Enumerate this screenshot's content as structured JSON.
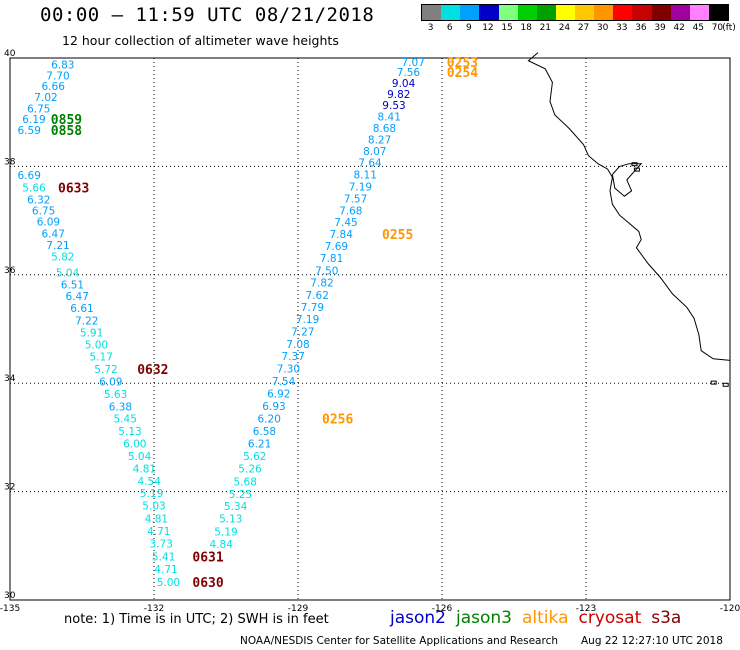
{
  "header": {
    "title": "00:00 – 11:59 UTC 08/21/2018",
    "subtitle": "12 hour collection of altimeter wave heights"
  },
  "legend": {
    "colors": [
      "#808080",
      "#00e0e0",
      "#00a0ff",
      "#0000c8",
      "#80ff80",
      "#00d000",
      "#00a000",
      "#ffff00",
      "#ffc800",
      "#ff9600",
      "#ff0000",
      "#c80000",
      "#800000",
      "#a000a0",
      "#ff80ff",
      "#000000"
    ],
    "labels": [
      "3",
      "6",
      "9",
      "12",
      "15",
      "18",
      "21",
      "24",
      "27",
      "30",
      "33",
      "36",
      "39",
      "42",
      "45",
      "70"
    ],
    "unit": "(ft)"
  },
  "axes": {
    "lon_ticks": [
      -135,
      -132,
      -129,
      -126,
      -123,
      -120
    ],
    "lat_ticks": [
      40,
      38,
      36,
      34,
      32,
      30
    ],
    "lon_labels": [
      "-135",
      "-132",
      "-129",
      "-126",
      "-123",
      "-120"
    ],
    "lat_labels": [
      "40",
      "38",
      "36",
      "34",
      "32",
      "30"
    ]
  },
  "satellites": [
    {
      "name": "jason2",
      "color": "#0000c8"
    },
    {
      "name": "jason3",
      "color": "#008000"
    },
    {
      "name": "altika",
      "color": "#ff9600"
    },
    {
      "name": "cryosat",
      "color": "#c80000"
    },
    {
      "name": "s3a",
      "color": "#800000"
    }
  ],
  "tracks": [
    {
      "name": "track-west",
      "points": [
        {
          "lon": -133.9,
          "lat": 39.88,
          "v": "6.83"
        },
        {
          "lon": -134.0,
          "lat": 39.68,
          "v": "7.70"
        },
        {
          "lon": -134.1,
          "lat": 39.48,
          "v": "6.66"
        },
        {
          "lon": -134.25,
          "lat": 39.28,
          "v": "7.02"
        },
        {
          "lon": -134.4,
          "lat": 39.07,
          "v": "6.75"
        },
        {
          "lon": -134.5,
          "lat": 38.87,
          "v": "6.19"
        },
        {
          "lon": -134.6,
          "lat": 38.67,
          "v": "6.59"
        },
        {
          "lon": -134.6,
          "lat": 37.84,
          "v": "6.69"
        },
        {
          "lon": -134.5,
          "lat": 37.61,
          "v": "5.66"
        },
        {
          "lon": -134.4,
          "lat": 37.39,
          "v": "6.32"
        },
        {
          "lon": -134.3,
          "lat": 37.19,
          "v": "6.75"
        },
        {
          "lon": -134.2,
          "lat": 36.98,
          "v": "6.09"
        },
        {
          "lon": -134.1,
          "lat": 36.76,
          "v": "6.47"
        },
        {
          "lon": -134.0,
          "lat": 36.55,
          "v": "7.21"
        },
        {
          "lon": -133.9,
          "lat": 36.34,
          "v": "5.82"
        },
        {
          "lon": -133.8,
          "lat": 36.04,
          "v": "5.04"
        },
        {
          "lon": -133.7,
          "lat": 35.82,
          "v": "6.51"
        },
        {
          "lon": -133.6,
          "lat": 35.61,
          "v": "6.47"
        },
        {
          "lon": -133.5,
          "lat": 35.39,
          "v": "6.61"
        },
        {
          "lon": -133.4,
          "lat": 35.16,
          "v": "7.22"
        },
        {
          "lon": -133.3,
          "lat": 34.94,
          "v": "5.91"
        },
        {
          "lon": -133.2,
          "lat": 34.71,
          "v": "5.00"
        },
        {
          "lon": -133.1,
          "lat": 34.49,
          "v": "5.17"
        },
        {
          "lon": -133.0,
          "lat": 34.26,
          "v": "5.72"
        },
        {
          "lon": -132.9,
          "lat": 34.03,
          "v": "6.09"
        },
        {
          "lon": -132.8,
          "lat": 33.8,
          "v": "5.63"
        },
        {
          "lon": -132.7,
          "lat": 33.57,
          "v": "6.38"
        },
        {
          "lon": -132.6,
          "lat": 33.35,
          "v": "5.45"
        },
        {
          "lon": -132.5,
          "lat": 33.12,
          "v": "5.13"
        },
        {
          "lon": -132.4,
          "lat": 32.89,
          "v": "6.00"
        },
        {
          "lon": -132.3,
          "lat": 32.66,
          "v": "5.04"
        },
        {
          "lon": -132.2,
          "lat": 32.43,
          "v": "4.81"
        },
        {
          "lon": -132.1,
          "lat": 32.2,
          "v": "4.54"
        },
        {
          "lon": -132.05,
          "lat": 31.97,
          "v": "5.19"
        },
        {
          "lon": -132.0,
          "lat": 31.74,
          "v": "5.03"
        },
        {
          "lon": -131.95,
          "lat": 31.5,
          "v": "4.81"
        },
        {
          "lon": -131.9,
          "lat": 31.27,
          "v": "4.71"
        },
        {
          "lon": -131.85,
          "lat": 31.04,
          "v": "3.73"
        },
        {
          "lon": -131.8,
          "lat": 30.8,
          "v": "5.41"
        },
        {
          "lon": -131.75,
          "lat": 30.57,
          "v": "4.71"
        },
        {
          "lon": -131.7,
          "lat": 30.33,
          "v": "5.00"
        }
      ]
    },
    {
      "name": "track-east",
      "points": [
        {
          "lon": -126.6,
          "lat": 39.93,
          "v": "7.07"
        },
        {
          "lon": -126.7,
          "lat": 39.74,
          "v": "7.56"
        },
        {
          "lon": -126.8,
          "lat": 39.54,
          "v": "9.04"
        },
        {
          "lon": -126.9,
          "lat": 39.34,
          "v": "9.82"
        },
        {
          "lon": -127.0,
          "lat": 39.13,
          "v": "9.53"
        },
        {
          "lon": -127.1,
          "lat": 38.92,
          "v": "8.41"
        },
        {
          "lon": -127.2,
          "lat": 38.71,
          "v": "8.68"
        },
        {
          "lon": -127.3,
          "lat": 38.5,
          "v": "8.27"
        },
        {
          "lon": -127.4,
          "lat": 38.28,
          "v": "8.07"
        },
        {
          "lon": -127.5,
          "lat": 38.07,
          "v": "7.64"
        },
        {
          "lon": -127.6,
          "lat": 37.85,
          "v": "8.11"
        },
        {
          "lon": -127.7,
          "lat": 37.63,
          "v": "7.19"
        },
        {
          "lon": -127.8,
          "lat": 37.41,
          "v": "7.57"
        },
        {
          "lon": -127.9,
          "lat": 37.19,
          "v": "7.68"
        },
        {
          "lon": -128.0,
          "lat": 36.97,
          "v": "7.45"
        },
        {
          "lon": -128.1,
          "lat": 36.75,
          "v": "7.84"
        },
        {
          "lon": -128.2,
          "lat": 36.53,
          "v": "7.69"
        },
        {
          "lon": -128.3,
          "lat": 36.31,
          "v": "7.81"
        },
        {
          "lon": -128.4,
          "lat": 36.08,
          "v": "7.50"
        },
        {
          "lon": -128.5,
          "lat": 35.86,
          "v": "7.82"
        },
        {
          "lon": -128.6,
          "lat": 35.63,
          "v": "7.62"
        },
        {
          "lon": -128.7,
          "lat": 35.41,
          "v": "7.79"
        },
        {
          "lon": -128.8,
          "lat": 35.18,
          "v": "7.19"
        },
        {
          "lon": -128.9,
          "lat": 34.95,
          "v": "7.27"
        },
        {
          "lon": -129.0,
          "lat": 34.72,
          "v": "7.08"
        },
        {
          "lon": -129.1,
          "lat": 34.5,
          "v": "7.37"
        },
        {
          "lon": -129.2,
          "lat": 34.27,
          "v": "7.30"
        },
        {
          "lon": -129.3,
          "lat": 34.04,
          "v": "7.54"
        },
        {
          "lon": -129.4,
          "lat": 33.81,
          "v": "6.92"
        },
        {
          "lon": -129.5,
          "lat": 33.58,
          "v": "6.93"
        },
        {
          "lon": -129.6,
          "lat": 33.35,
          "v": "6.20"
        },
        {
          "lon": -129.7,
          "lat": 33.12,
          "v": "6.58"
        },
        {
          "lon": -129.8,
          "lat": 32.89,
          "v": "6.21"
        },
        {
          "lon": -129.9,
          "lat": 32.66,
          "v": "5.62"
        },
        {
          "lon": -130.0,
          "lat": 32.43,
          "v": "5.26"
        },
        {
          "lon": -130.1,
          "lat": 32.19,
          "v": "5.68"
        },
        {
          "lon": -130.2,
          "lat": 31.96,
          "v": "5.25"
        },
        {
          "lon": -130.3,
          "lat": 31.73,
          "v": "5.34"
        },
        {
          "lon": -130.4,
          "lat": 31.5,
          "v": "5.13"
        },
        {
          "lon": -130.5,
          "lat": 31.26,
          "v": "5.19"
        },
        {
          "lon": -130.6,
          "lat": 31.03,
          "v": "4.84"
        }
      ]
    }
  ],
  "time_labels": [
    {
      "lon": -125.9,
      "lat": 39.93,
      "t": "0253",
      "color": "#ff9600"
    },
    {
      "lon": -125.9,
      "lat": 39.74,
      "t": "0254",
      "color": "#ff9600"
    },
    {
      "lon": -127.25,
      "lat": 36.75,
      "t": "0255",
      "color": "#ff9600"
    },
    {
      "lon": -128.5,
      "lat": 33.35,
      "t": "0256",
      "color": "#ff9600"
    },
    {
      "lon": -134.15,
      "lat": 38.87,
      "t": "0859",
      "color": "#008000"
    },
    {
      "lon": -134.15,
      "lat": 38.67,
      "t": "0858",
      "color": "#008000"
    },
    {
      "lon": -134.0,
      "lat": 37.61,
      "t": "0633",
      "color": "#800000"
    },
    {
      "lon": -132.35,
      "lat": 34.26,
      "t": "0632",
      "color": "#800000"
    },
    {
      "lon": -131.2,
      "lat": 30.8,
      "t": "0631",
      "color": "#800000"
    },
    {
      "lon": -131.2,
      "lat": 30.33,
      "t": "0630",
      "color": "#800000"
    }
  ],
  "coast": [
    [
      -124.0,
      40.1
    ],
    [
      -124.2,
      39.95
    ],
    [
      -123.85,
      39.8
    ],
    [
      -123.7,
      39.55
    ],
    [
      -123.75,
      39.2
    ],
    [
      -123.65,
      38.95
    ],
    [
      -123.35,
      38.7
    ],
    [
      -123.05,
      38.4
    ],
    [
      -122.95,
      38.2
    ],
    [
      -122.75,
      38.05
    ],
    [
      -122.55,
      37.95
    ],
    [
      -122.45,
      37.8
    ],
    [
      -122.5,
      37.55
    ],
    [
      -122.45,
      37.3
    ],
    [
      -122.3,
      37.1
    ],
    [
      -122.1,
      36.95
    ],
    [
      -121.9,
      36.8
    ],
    [
      -121.85,
      36.65
    ],
    [
      -121.95,
      36.5
    ],
    [
      -121.7,
      36.2
    ],
    [
      -121.45,
      35.95
    ],
    [
      -121.2,
      35.65
    ],
    [
      -120.9,
      35.4
    ],
    [
      -120.75,
      35.2
    ],
    [
      -120.65,
      34.9
    ],
    [
      -120.6,
      34.6
    ],
    [
      -120.35,
      34.45
    ],
    [
      -120.0,
      34.42
    ]
  ],
  "bay": [
    [
      -122.45,
      37.85
    ],
    [
      -122.3,
      38.0
    ],
    [
      -122.1,
      38.05
    ],
    [
      -121.85,
      38.05
    ],
    [
      -121.95,
      37.95
    ],
    [
      -122.15,
      37.75
    ],
    [
      -122.05,
      37.55
    ],
    [
      -122.2,
      37.45
    ],
    [
      -122.4,
      37.6
    ],
    [
      -122.45,
      37.85
    ]
  ],
  "islands": [
    {
      "lon": -120.35,
      "lat": 34.02
    },
    {
      "lon": -120.1,
      "lat": 33.98
    },
    {
      "lon": -121.95,
      "lat": 37.95
    },
    {
      "lon": -122.0,
      "lat": 38.05
    }
  ],
  "footer": {
    "note": "note:  1) Time is in UTC;  2) SWH is in feet",
    "credit": "NOAA/NESDIS Center for Satellite Applications and Research",
    "timestamp": "Aug 22 12:27:10 UTC 2018"
  }
}
